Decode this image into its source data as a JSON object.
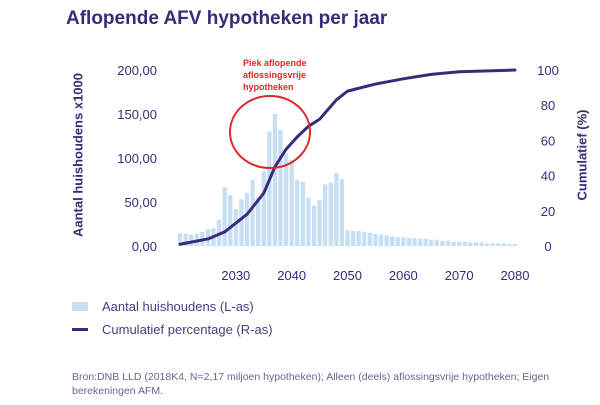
{
  "chart_data": {
    "type": "bar",
    "title": "Aflopende AFV hypotheken per jaar",
    "ylabel": "Aantal huishoudens x1000",
    "y2label": "Cumulatief (%)",
    "ylim": [
      0,
      200
    ],
    "y2lim": [
      0,
      100
    ],
    "yticks": [
      "0,00",
      "50,00",
      "100,00",
      "150,00",
      "200,00"
    ],
    "y2ticks": [
      "0",
      "20",
      "40",
      "60",
      "80",
      "100"
    ],
    "xticks": [
      "2030",
      "2040",
      "2050",
      "2060",
      "2070",
      "2080"
    ],
    "x": [
      2020,
      2021,
      2022,
      2023,
      2024,
      2025,
      2026,
      2027,
      2028,
      2029,
      2030,
      2031,
      2032,
      2033,
      2034,
      2035,
      2036,
      2037,
      2038,
      2039,
      2040,
      2041,
      2042,
      2043,
      2044,
      2045,
      2046,
      2047,
      2048,
      2049,
      2050,
      2051,
      2052,
      2053,
      2054,
      2055,
      2056,
      2057,
      2058,
      2059,
      2060,
      2061,
      2062,
      2063,
      2064,
      2065,
      2066,
      2067,
      2068,
      2069,
      2070,
      2071,
      2072,
      2073,
      2074,
      2075,
      2076,
      2077,
      2078,
      2079,
      2080
    ],
    "series": [
      {
        "name": "Aantal huishoudens (L-as)",
        "type": "bar",
        "axis": "left",
        "color": "#c6dff2",
        "values": [
          15,
          14,
          13,
          14,
          16,
          19,
          20,
          30,
          67,
          58,
          42,
          53,
          60,
          75,
          55,
          85,
          130,
          150,
          132,
          105,
          98,
          75,
          73,
          55,
          46,
          52,
          70,
          72,
          83,
          76,
          18,
          17,
          17,
          16,
          15,
          14,
          13,
          12,
          11,
          10,
          10,
          9,
          9,
          8,
          8,
          7,
          7,
          6,
          6,
          5,
          5,
          5,
          4,
          4,
          4,
          3,
          3,
          3,
          3,
          2,
          2
        ]
      },
      {
        "name": "Cumulatief percentage (R-as)",
        "type": "line",
        "axis": "right",
        "color": "#3b2a7a",
        "x": [
          2020,
          2025,
          2028,
          2032,
          2035,
          2037,
          2039,
          2041,
          2043,
          2045,
          2048,
          2050,
          2055,
          2060,
          2065,
          2070,
          2080
        ],
        "values": [
          1,
          4,
          8,
          18,
          30,
          45,
          55,
          62,
          68,
          72,
          83,
          88,
          92,
          95,
          97.5,
          99,
          100
        ]
      }
    ],
    "annotation": {
      "text": "Piek aflopende aflossingsvrije hypotheken",
      "lines": [
        "Piek aflopende",
        "aflossingsvrije",
        "hypotheken"
      ],
      "color": "#e3242b"
    },
    "legend": [
      "Aantal huishoudens (L-as)",
      "Cumulatief percentage (R-as)"
    ],
    "source": "Bron:DNB LLD (2018K4, N=2,17 miljoen hypotheken); Alleen (deels) aflossingsvrije hypotheken; Eigen berekeningen AFM."
  }
}
